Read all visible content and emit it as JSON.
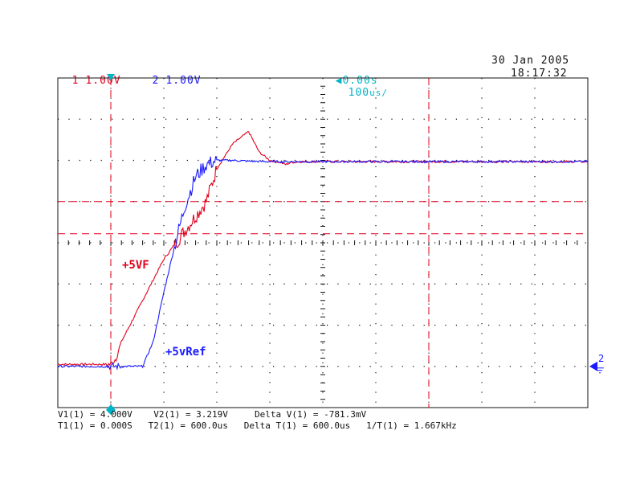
{
  "header": {
    "ch1_num": "1",
    "ch1_scale": "1.00V",
    "ch2_num": "2",
    "ch2_scale": "1.00V",
    "timebase_offset": "0.00s",
    "timebase_scale": "100",
    "timebase_unit": "us/",
    "date": "30 Jan 2005",
    "time": "18:17:32"
  },
  "colors": {
    "ch1": "#e0001b",
    "ch2": "#1a1aff",
    "timebase": "#00b4c8",
    "grid": "#111111"
  },
  "chart_data": {
    "type": "line",
    "xlabel": "",
    "ylabel": "",
    "x_unit": "us",
    "y_unit": "V",
    "xlim": [
      -100,
      900
    ],
    "ylim": [
      -1,
      7
    ],
    "grid": true,
    "series": [
      {
        "name": "+5VF",
        "color": "#e0001b",
        "x": [
          -100,
          0,
          10,
          20,
          60,
          100,
          140,
          180,
          200,
          230,
          260,
          280,
          300,
          320,
          330,
          340,
          360,
          400,
          900
        ],
        "y": [
          0.05,
          0.05,
          0.2,
          0.6,
          1.6,
          2.6,
          3.3,
          4.0,
          4.8,
          5.4,
          5.7,
          5.2,
          5.0,
          4.95,
          4.9,
          4.95,
          4.97,
          4.97,
          4.97
        ]
      },
      {
        "name": "+5vRef",
        "color": "#1a1aff",
        "x": [
          -100,
          0,
          20,
          60,
          80,
          100,
          120,
          140,
          160,
          180,
          200,
          230,
          260,
          300,
          900
        ],
        "y": [
          0.0,
          0.0,
          0.0,
          0.0,
          0.6,
          1.8,
          2.9,
          3.9,
          4.6,
          4.9,
          5.0,
          5.0,
          4.98,
          4.97,
          4.97
        ]
      }
    ],
    "annotations": [
      "+5VF",
      "+5vRef"
    ],
    "cursors": {
      "v1": 4.0,
      "v2": 3.219,
      "t1": 0.0,
      "t2": 600.0
    },
    "ground_marker": "2"
  },
  "readout": {
    "line1": "V1(1) = 4.000V    V2(1) = 3.219V     Delta V(1) = -781.3mV",
    "line2": "T1(1) = 0.000S   T2(1) = 600.0us   Delta T(1) = 600.0us   1/T(1) = 1.667kHz"
  }
}
